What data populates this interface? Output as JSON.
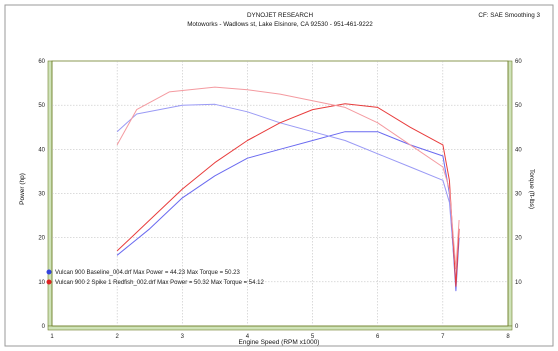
{
  "header": {
    "line1": "DYNOJET RESEARCH",
    "line2": "Motoworks - Wadlows st, Lake Elsinore, CA 92530 - 951-461-9222",
    "correction": "CF: SAE Smoothing 3"
  },
  "chart_data": {
    "type": "line",
    "xlabel": "Engine Speed (RPM x1000)",
    "ylabel": "Power (hp)",
    "y2label": "Torque (ft-lbs)",
    "xlim": [
      1,
      8
    ],
    "ylim": [
      0,
      60
    ],
    "y2lim": [
      0,
      60
    ],
    "x_ticks": [
      "1",
      "2",
      "3",
      "4",
      "5",
      "6",
      "7",
      "8"
    ],
    "y_ticks": [
      "0",
      "10",
      "20",
      "30",
      "40",
      "50",
      "60"
    ],
    "y2_ticks": [
      "0",
      "10",
      "20",
      "30",
      "40",
      "50",
      "60"
    ],
    "grid": true,
    "legend_position": "bottom-left",
    "series": [
      {
        "name": "Vulcan 900 Baseline_004.drf Max Power = 44.23  Max Torque = 50.23",
        "color": "#6a6af0",
        "quantity": "power",
        "points": [
          [
            2,
            16
          ],
          [
            2.5,
            22
          ],
          [
            3,
            29
          ],
          [
            3.5,
            34
          ],
          [
            4,
            38
          ],
          [
            4.5,
            40
          ],
          [
            5,
            42
          ],
          [
            5.5,
            44
          ],
          [
            6,
            44
          ],
          [
            6.5,
            41
          ],
          [
            7,
            38.5
          ],
          [
            7.1,
            30
          ],
          [
            7.2,
            8
          ],
          [
            7.25,
            20
          ]
        ]
      },
      {
        "name": "Vulcan 900 Baseline_004.drf Max Power = 44.23  Max Torque = 50.23",
        "color": "#9a9af5",
        "quantity": "torque",
        "points": [
          [
            2,
            44
          ],
          [
            2.3,
            48
          ],
          [
            3,
            50
          ],
          [
            3.5,
            50.2
          ],
          [
            4,
            48.5
          ],
          [
            4.5,
            46
          ],
          [
            5,
            44
          ],
          [
            5.5,
            42
          ],
          [
            6,
            39
          ],
          [
            6.5,
            36
          ],
          [
            7,
            33
          ],
          [
            7.1,
            28
          ],
          [
            7.2,
            10
          ],
          [
            7.25,
            22
          ]
        ]
      },
      {
        "name": "Vulcan 900 2 Spike 1 Redfish_002.drf Max Power = 50.32  Max Torque = 54.12",
        "color": "#e83c3c",
        "quantity": "power",
        "points": [
          [
            2,
            17
          ],
          [
            2.5,
            24
          ],
          [
            3,
            31
          ],
          [
            3.5,
            37
          ],
          [
            4,
            42
          ],
          [
            4.5,
            46
          ],
          [
            5,
            49
          ],
          [
            5.5,
            50.3
          ],
          [
            6,
            49.5
          ],
          [
            6.5,
            45
          ],
          [
            7,
            41
          ],
          [
            7.1,
            33
          ],
          [
            7.2,
            9
          ],
          [
            7.25,
            22
          ]
        ]
      },
      {
        "name": "Vulcan 900 2 Spike 1 Redfish_002.drf Max Power = 50.32  Max Torque = 54.12",
        "color": "#f49aa0",
        "quantity": "torque",
        "points": [
          [
            2,
            41
          ],
          [
            2.3,
            49
          ],
          [
            2.8,
            53
          ],
          [
            3.5,
            54.1
          ],
          [
            4,
            53.5
          ],
          [
            4.5,
            52.5
          ],
          [
            5,
            51
          ],
          [
            5.5,
            49.5
          ],
          [
            6,
            46
          ],
          [
            6.5,
            41
          ],
          [
            7,
            36
          ],
          [
            7.1,
            31
          ],
          [
            7.2,
            13
          ],
          [
            7.25,
            24
          ]
        ]
      }
    ],
    "legend": [
      {
        "marker_color": "#3344dd",
        "label": "Vulcan 900 Baseline_004.drf Max Power = 44.23      Max Torque = 50.23"
      },
      {
        "marker_color": "#dd2222",
        "label": "Vulcan 900 2 Spike 1 Redfish_002.drf Max Power = 50.32      Max Torque = 54.12"
      }
    ]
  },
  "colors": {
    "frame": "#6f7f2a",
    "axis_band": "#cfe3b8",
    "grid": "#b7b7b7",
    "background": "#ffffff"
  }
}
